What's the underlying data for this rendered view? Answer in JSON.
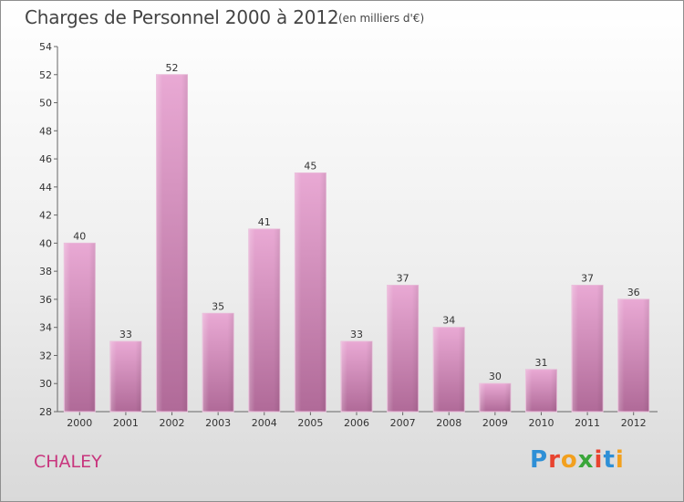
{
  "header": {
    "title": "Charges de Personnel 2000 à 2012",
    "unit": "(en milliers d'€)"
  },
  "footer": {
    "city": "CHALEY",
    "logo": "Proxiti"
  },
  "colors": {
    "bar_light": "#e9a9d4",
    "bar_dark": "#b06a98",
    "city": "#c8357d",
    "logo": [
      "#2e8fd6",
      "#e8432f",
      "#f2a01e",
      "#3aa63a",
      "#e8432f",
      "#2e8fd6",
      "#f2a01e"
    ]
  },
  "chart_data": {
    "type": "bar",
    "title": "Charges de Personnel 2000 à 2012",
    "subtitle": "(en milliers d'€)",
    "categories": [
      "2000",
      "2001",
      "2002",
      "2003",
      "2004",
      "2005",
      "2006",
      "2007",
      "2008",
      "2009",
      "2010",
      "2011",
      "2012"
    ],
    "values": [
      40,
      33,
      52,
      35,
      41,
      45,
      33,
      37,
      34,
      30,
      31,
      37,
      36
    ],
    "ylim": [
      28,
      54
    ],
    "yticks": [
      28,
      30,
      32,
      34,
      36,
      38,
      40,
      42,
      44,
      46,
      48,
      50,
      52,
      54
    ],
    "grid": false,
    "data_labels": true
  }
}
